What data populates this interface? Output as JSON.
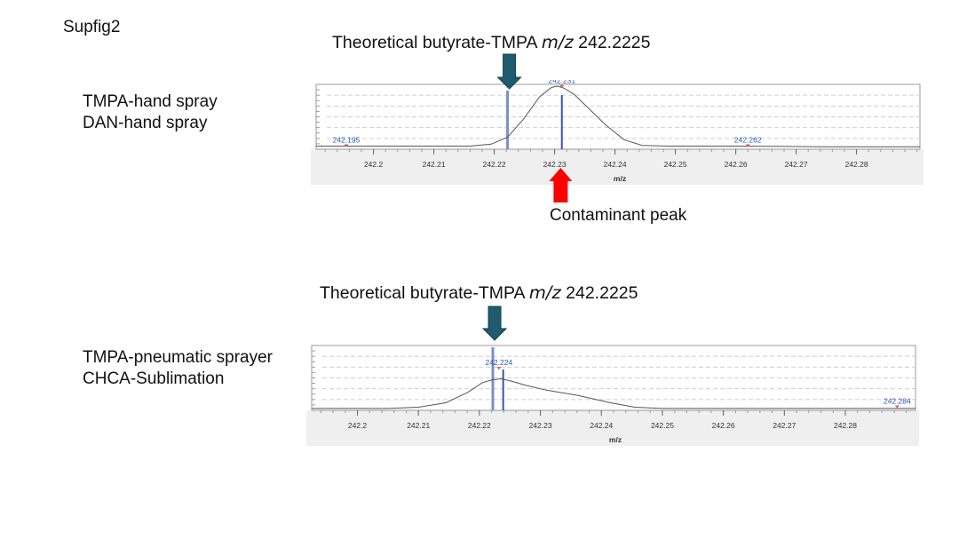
{
  "figure_label": "Supfig2",
  "arrow_colors": {
    "theoretical": "#1f5a6e",
    "contaminant": "#ff0000"
  },
  "chart_data": [
    {
      "type": "line",
      "title_main": "Theoretical butyrate-TMPA",
      "title_mz": "m/z",
      "title_value": "242.2225",
      "samples": [
        "TMPA-hand spray",
        "DAN-hand spray"
      ],
      "xlabel": "m/z",
      "ylabel": "",
      "xlim": [
        242.1905,
        242.2905
      ],
      "ylim": [
        0,
        1
      ],
      "xticks": [
        "242.2",
        "242.21",
        "242.22",
        "242.23",
        "242.24",
        "242.25",
        "242.26",
        "242.27",
        "242.28"
      ],
      "grid": true,
      "profile": {
        "x": [
          242.1905,
          242.205,
          242.21,
          242.216,
          242.2195,
          242.2222,
          242.2248,
          242.2275,
          242.2295,
          242.2305,
          242.2315,
          242.2332,
          242.2355,
          242.2385,
          242.2415,
          242.2445,
          242.249,
          242.26,
          242.275,
          242.2905
        ],
        "y": [
          0.05,
          0.05,
          0.05,
          0.05,
          0.08,
          0.19,
          0.47,
          0.83,
          0.98,
          1.0,
          0.97,
          0.87,
          0.66,
          0.38,
          0.15,
          0.06,
          0.05,
          0.05,
          0.04,
          0.04
        ]
      },
      "sticks": [
        {
          "x": 242.2222,
          "y": 0.93,
          "role": "theoretical"
        },
        {
          "x": 242.2312,
          "y": 0.86,
          "role": "peak"
        }
      ],
      "peak_labels": [
        {
          "text": "242.195",
          "x": 242.1955,
          "y": 0.05
        },
        {
          "text": "242.231",
          "x": 242.2312,
          "y": 0.99
        },
        {
          "text": "242.262",
          "x": 242.262,
          "y": 0.05
        }
      ],
      "theoretical_mz": 242.2225,
      "annotations": [
        {
          "text": "Contaminant peak",
          "x": 242.231
        }
      ]
    },
    {
      "type": "line",
      "title_main": "Theoretical butyrate-TMPA",
      "title_mz": "m/z",
      "title_value": "242.2225",
      "samples": [
        "TMPA-pneumatic sprayer",
        "CHCA-Sublimation"
      ],
      "xlabel": "m/z",
      "ylabel": "",
      "xlim": [
        242.1925,
        242.2915
      ],
      "ylim": [
        0,
        1
      ],
      "xticks": [
        "242.2",
        "242.21",
        "242.22",
        "242.23",
        "242.24",
        "242.25",
        "242.26",
        "242.27",
        "242.28"
      ],
      "grid": true,
      "profile": {
        "x": [
          242.1925,
          242.2,
          242.205,
          242.21,
          242.2145,
          242.218,
          242.2205,
          242.222,
          242.2235,
          242.225,
          242.2275,
          242.231,
          242.236,
          242.2415,
          242.2455,
          242.25,
          242.26,
          242.275,
          242.2915
        ],
        "y": [
          0.03,
          0.03,
          0.03,
          0.05,
          0.12,
          0.28,
          0.44,
          0.48,
          0.5,
          0.47,
          0.4,
          0.32,
          0.24,
          0.12,
          0.05,
          0.03,
          0.03,
          0.03,
          0.03
        ]
      },
      "sticks": [
        {
          "x": 242.2222,
          "y": 1.0,
          "role": "theoretical"
        },
        {
          "x": 242.2239,
          "y": 0.65,
          "role": "peak"
        }
      ],
      "peak_labels": [
        {
          "text": "242.224",
          "x": 242.2232,
          "y": 0.66
        },
        {
          "text": "242.284",
          "x": 242.2885,
          "y": 0.05
        }
      ],
      "theoretical_mz": 242.2225,
      "annotations": []
    }
  ]
}
